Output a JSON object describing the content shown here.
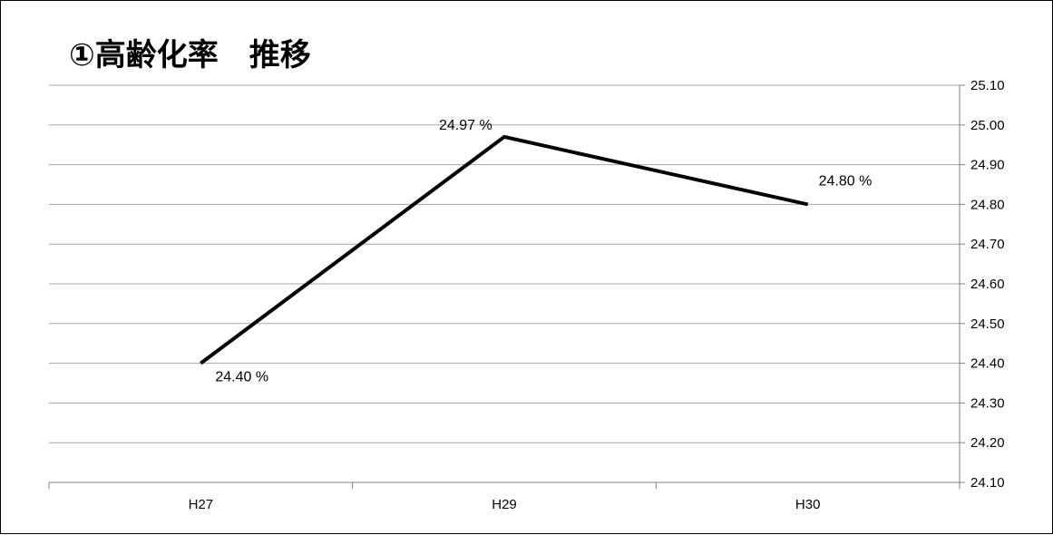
{
  "chart_data": {
    "type": "line",
    "title": "①高齢化率　推移",
    "categories": [
      "H27",
      "H29",
      "H30"
    ],
    "series": [
      {
        "values": [
          24.4,
          24.97,
          24.8
        ],
        "data_labels": [
          "24.40 %",
          "24.97 %",
          "24.80 %"
        ],
        "color": "#000000"
      }
    ],
    "xlabel": "",
    "ylabel": "",
    "ylim": [
      24.1,
      25.1
    ],
    "yticks": [
      "24.10",
      "24.20",
      "24.30",
      "24.40",
      "24.50",
      "24.60",
      "24.70",
      "24.80",
      "24.90",
      "25.00",
      "25.10"
    ],
    "y_axis_position": "right",
    "grid": true,
    "legend": "none",
    "gridline_color": "#a6a6a6",
    "axis_color": "#808080"
  }
}
